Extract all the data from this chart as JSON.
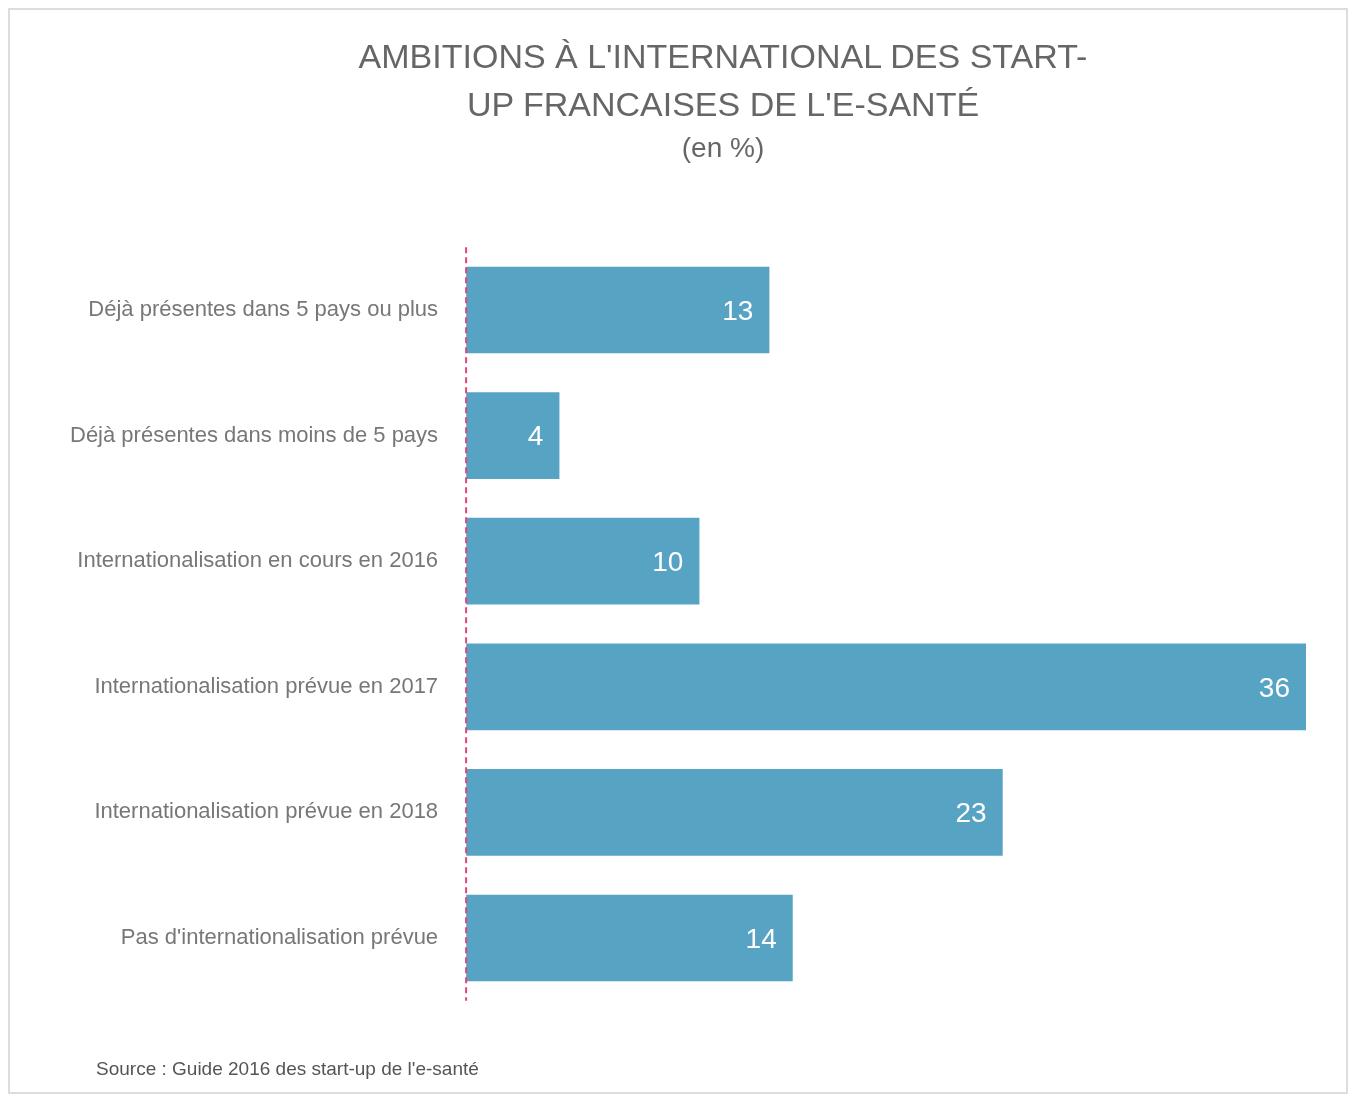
{
  "chart_data": {
    "type": "bar",
    "orientation": "horizontal",
    "title": "AMBITIONS À L'INTERNATIONAL DES START-UP FRANCAISES DE L'E-SANTÉ",
    "subtitle": "(en %)",
    "categories": [
      "Déjà présentes dans 5 pays ou plus",
      "Déjà présentes dans moins de 5 pays",
      "Internationalisation en cours en 2016",
      "Internationalisation prévue en 2017",
      "Internationalisation prévue en 2018",
      "Pas d'internationalisation prévue"
    ],
    "values": [
      13,
      4,
      10,
      36,
      23,
      14
    ],
    "color": "#57a3c4",
    "data_labels": true,
    "legend": false,
    "ref_lines": [
      {
        "axis": "x",
        "value": 0,
        "color": "#e0457b",
        "line_style": "dashed"
      }
    ],
    "annotations": [
      "Source : Guide 2016 des start-up de l'e-santé"
    ]
  }
}
